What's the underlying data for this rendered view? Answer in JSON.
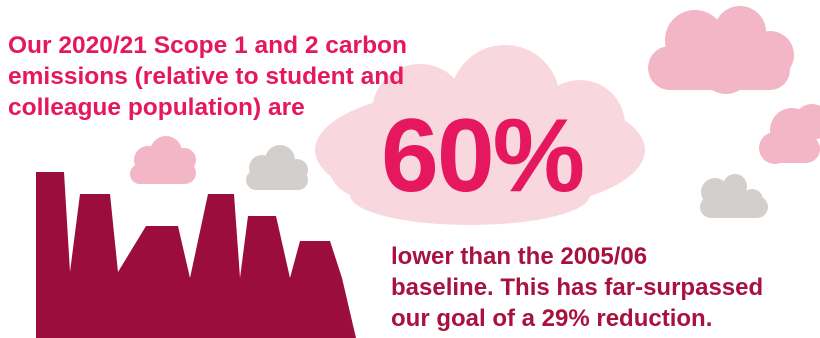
{
  "headline": {
    "line1": "Our 2020/21 Scope 1 and 2 carbon",
    "line2": "emissions (relative to student and",
    "line3": "colleague population) are"
  },
  "figure": {
    "value": "60%"
  },
  "subtext": {
    "line1": "lower than the 2005/06",
    "line2": "baseline. This has far-surpassed",
    "line3": "our goal of a 29% reduction."
  },
  "colors": {
    "headline_pink": "#e5175f",
    "dark_crimson": "#a8123f",
    "factory": "#9b0d3c",
    "pink_cloud": "#f2b6c6",
    "pale_pink_cloud": "#f9d7df",
    "grey_cloud": "#d3cfcd"
  },
  "icons": [
    "factory-skyline-icon",
    "cloud-icon"
  ]
}
